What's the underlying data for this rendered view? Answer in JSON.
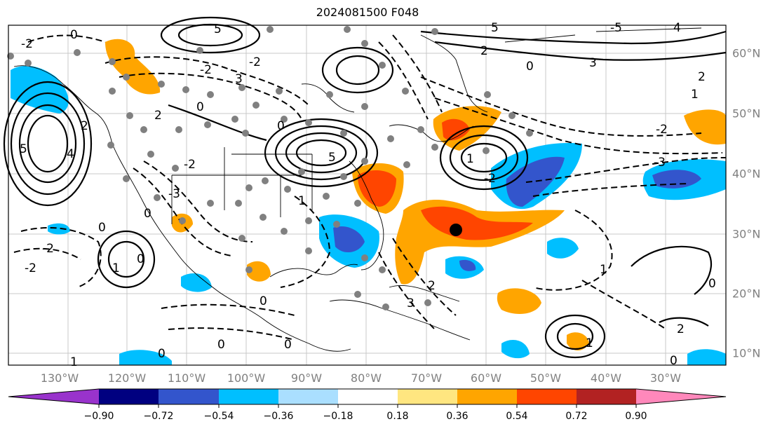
{
  "title": "2024081500 F048",
  "lon_labels": [
    "130°W",
    "120°W",
    "110°W",
    "100°W",
    "90°W",
    "80°W",
    "70°W",
    "60°W",
    "50°W",
    "40°W",
    "30°W"
  ],
  "lat_labels": [
    "60°N",
    "50°N",
    "40°N",
    "30°N",
    "20°N",
    "10°N"
  ],
  "colorbar": {
    "ticks": [
      "−0.90",
      "−0.72",
      "−0.54",
      "−0.36",
      "−0.18",
      "0.18",
      "0.36",
      "0.54",
      "0.72",
      "0.90"
    ],
    "colors": [
      "#9933cc",
      "#000080",
      "#3355cc",
      "#00bfff",
      "#aadfff",
      "#ffffff",
      "#ffe680",
      "#ffa500",
      "#ff4500",
      "#b22222",
      "#ff88bb"
    ]
  },
  "contour_labels": [
    "0",
    "1",
    "2",
    "-1",
    "-2",
    "3",
    "-3",
    "5",
    "-5",
    "4"
  ],
  "shading_colors": {
    "positive_weak": "#ffa500",
    "positive_strong": "#ff4500",
    "positive_max": "#b22222",
    "negative_weak": "#00bfff",
    "negative_strong": "#3355cc"
  },
  "observation_marker_color": "#808080",
  "center_marker_color": "#000000"
}
